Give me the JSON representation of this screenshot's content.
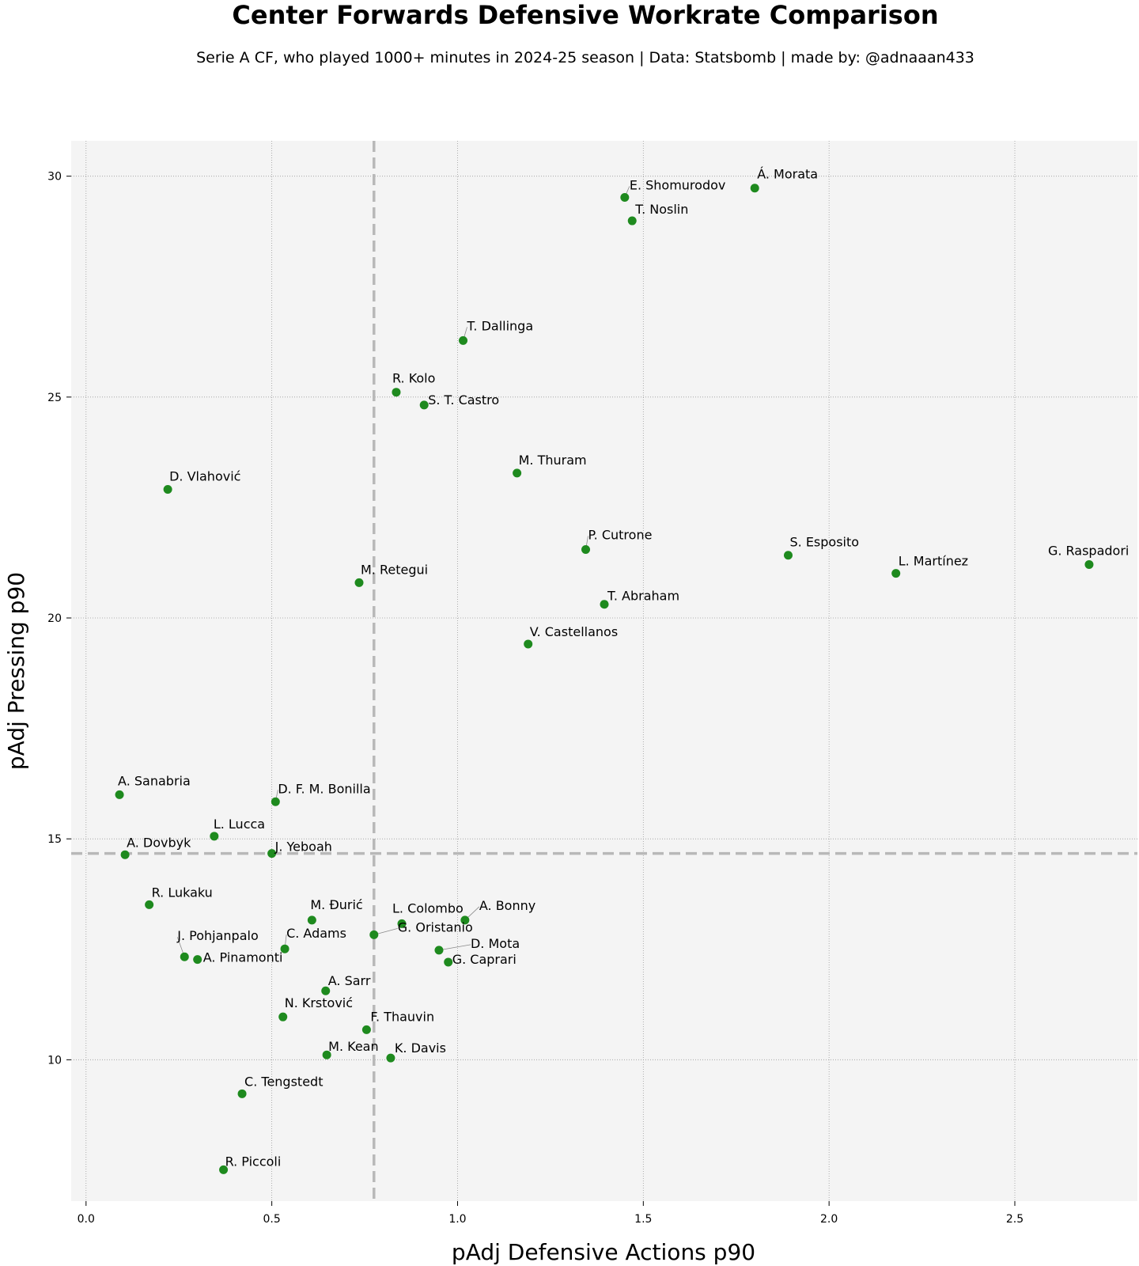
{
  "chart_data": {
    "type": "scatter",
    "title": "Center Forwards Defensive Workrate Comparison",
    "subtitle": "Serie A CF, who played 1000+ minutes in 2024-25 season  |  Data: Statsbomb  |  made by: @adnaaan433",
    "xlabel": "pAdj Defensive Actions p90",
    "ylabel": "pAdj Pressing p90",
    "xlim": [
      -0.04,
      2.83
    ],
    "ylim": [
      6.8,
      30.8
    ],
    "xticks": [
      "0.0",
      "0.5",
      "1.0",
      "1.5",
      "2.0",
      "2.5"
    ],
    "xtick_values": [
      0,
      0.5,
      1.0,
      1.5,
      2.0,
      2.5
    ],
    "yticks": [
      "10",
      "15",
      "20",
      "25",
      "30"
    ],
    "ytick_values": [
      10,
      15,
      20,
      25,
      30
    ],
    "grid": true,
    "reference_lines": {
      "x_mean": 0.775,
      "y_mean": 14.67
    },
    "colors": {
      "point": "#1e8a1e",
      "plot_bg": "#f4f4f4",
      "ref_line": "#b8b8b8"
    },
    "points": [
      {
        "name": "Á. Morata",
        "x": 1.8,
        "y": 29.73
      },
      {
        "name": "E. Shomurodov",
        "x": 1.45,
        "y": 29.52
      },
      {
        "name": "T. Noslin",
        "x": 1.47,
        "y": 28.99
      },
      {
        "name": "T. Dallinga",
        "x": 1.015,
        "y": 26.28
      },
      {
        "name": "R. Kolo",
        "x": 0.835,
        "y": 25.11
      },
      {
        "name": "S. T. Castro",
        "x": 0.91,
        "y": 24.82
      },
      {
        "name": "M. Thuram",
        "x": 1.16,
        "y": 23.28
      },
      {
        "name": "D. Vlahović",
        "x": 0.22,
        "y": 22.91
      },
      {
        "name": "P. Cutrone",
        "x": 1.345,
        "y": 21.55
      },
      {
        "name": "S. Esposito",
        "x": 1.89,
        "y": 21.42
      },
      {
        "name": "G. Raspadori",
        "x": 2.7,
        "y": 21.21
      },
      {
        "name": "L. Martínez",
        "x": 2.18,
        "y": 21.01
      },
      {
        "name": "M. Retegui",
        "x": 0.735,
        "y": 20.8
      },
      {
        "name": "T. Abraham",
        "x": 1.395,
        "y": 20.31
      },
      {
        "name": "V. Castellanos",
        "x": 1.19,
        "y": 19.41
      },
      {
        "name": "A. Sanabria",
        "x": 0.09,
        "y": 16.0
      },
      {
        "name": "D. F. M. Bonilla",
        "x": 0.51,
        "y": 15.84
      },
      {
        "name": "L. Lucca",
        "x": 0.345,
        "y": 15.06
      },
      {
        "name": "A. Dovbyk",
        "x": 0.105,
        "y": 14.64
      },
      {
        "name": "J. Yeboah",
        "x": 0.5,
        "y": 14.67
      },
      {
        "name": "R. Lukaku",
        "x": 0.17,
        "y": 13.51
      },
      {
        "name": "M. Đurić",
        "x": 0.608,
        "y": 13.16
      },
      {
        "name": "A. Bonny",
        "x": 1.02,
        "y": 13.16
      },
      {
        "name": "L. Colombo",
        "x": 0.85,
        "y": 13.08
      },
      {
        "name": "G. Oristanio",
        "x": 0.775,
        "y": 12.83
      },
      {
        "name": "C. Adams",
        "x": 0.535,
        "y": 12.51
      },
      {
        "name": "D. Mota",
        "x": 0.95,
        "y": 12.48
      },
      {
        "name": "J. Pohjanpalo",
        "x": 0.265,
        "y": 12.33
      },
      {
        "name": "A. Pinamonti",
        "x": 0.3,
        "y": 12.27
      },
      {
        "name": "G. Caprari",
        "x": 0.975,
        "y": 12.21
      },
      {
        "name": "A. Sarr",
        "x": 0.645,
        "y": 11.56
      },
      {
        "name": "N. Krstović",
        "x": 0.53,
        "y": 10.97
      },
      {
        "name": "F. Thauvin",
        "x": 0.755,
        "y": 10.68
      },
      {
        "name": "M. Kean",
        "x": 0.648,
        "y": 10.11
      },
      {
        "name": "K. Davis",
        "x": 0.82,
        "y": 10.04
      },
      {
        "name": "C. Tengstedt",
        "x": 0.42,
        "y": 9.23
      },
      {
        "name": "R. Piccoli",
        "x": 0.37,
        "y": 7.51
      }
    ]
  }
}
